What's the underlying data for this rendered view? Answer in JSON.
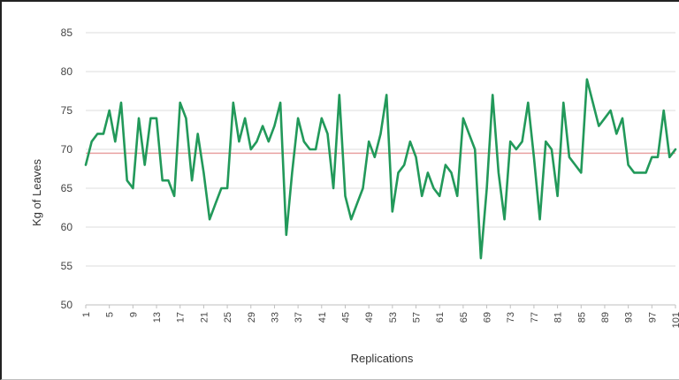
{
  "chart_data": {
    "type": "line",
    "xlabel": "Replications",
    "ylabel": "Kg of Leaves",
    "ylim": [
      50,
      85
    ],
    "yticks": [
      50,
      55,
      60,
      65,
      70,
      75,
      80,
      85
    ],
    "xlim": [
      1,
      101
    ],
    "xticks": [
      1,
      5,
      9,
      13,
      17,
      21,
      25,
      29,
      33,
      37,
      41,
      45,
      49,
      53,
      57,
      61,
      65,
      69,
      73,
      77,
      81,
      85,
      89,
      93,
      97,
      101
    ],
    "grid": true,
    "legend": "none",
    "mean_line": {
      "value": 69.5,
      "color": "#e8a0a0"
    },
    "series": [
      {
        "color": "#22995a",
        "x": [
          1,
          2,
          3,
          4,
          5,
          6,
          7,
          8,
          9,
          10,
          11,
          12,
          13,
          14,
          15,
          16,
          17,
          18,
          19,
          20,
          21,
          22,
          23,
          24,
          25,
          26,
          27,
          28,
          29,
          30,
          31,
          32,
          33,
          34,
          35,
          36,
          37,
          38,
          39,
          40,
          41,
          42,
          43,
          44,
          45,
          46,
          47,
          48,
          49,
          50,
          51,
          52,
          53,
          54,
          55,
          56,
          57,
          58,
          59,
          60,
          61,
          62,
          63,
          64,
          65,
          66,
          67,
          68,
          69,
          70,
          71,
          72,
          73,
          74,
          75,
          76,
          77,
          78,
          79,
          80,
          81,
          82,
          83,
          84,
          85,
          86,
          87,
          88,
          89,
          90,
          91,
          92,
          93,
          94,
          95,
          96,
          97,
          98,
          99,
          100,
          101
        ],
        "values": [
          68,
          71,
          72,
          72,
          75,
          71,
          76,
          66,
          65,
          74,
          68,
          74,
          74,
          66,
          66,
          64,
          76,
          74,
          66,
          72,
          67,
          61,
          63,
          65,
          65,
          76,
          71,
          74,
          70,
          71,
          73,
          71,
          73,
          76,
          59,
          67,
          74,
          71,
          70,
          70,
          74,
          72,
          65,
          77,
          64,
          61,
          63,
          65,
          71,
          69,
          72,
          77,
          62,
          67,
          68,
          71,
          69,
          64,
          67,
          65,
          64,
          68,
          67,
          64,
          74,
          72,
          70,
          56,
          65,
          77,
          67,
          61,
          71,
          70,
          71,
          76,
          69,
          61,
          71,
          70,
          64,
          76,
          69,
          68,
          67,
          79,
          76,
          73,
          74,
          75,
          72,
          74,
          68,
          67,
          67,
          67,
          69,
          69,
          75,
          69,
          70
        ]
      }
    ]
  }
}
